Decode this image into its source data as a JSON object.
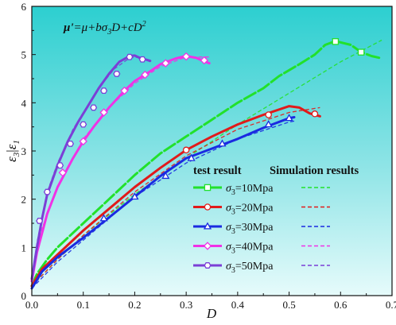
{
  "chart_data": {
    "type": "line",
    "formula": "μ'=μ+bσ3D+cD2",
    "formula_parts": {
      "lhs": "μ'",
      "rest": "=μ+bσ",
      "sub3": "3",
      "mid": "D+cD",
      "sup2": "2"
    },
    "xlabel": "D",
    "ylabel": "ε3|ε1",
    "ylabel_parts": {
      "a": "ε",
      "a_sub": "3",
      "bar": "|",
      "b": "ε",
      "b_sub": "1"
    },
    "xlim": [
      0.0,
      0.7
    ],
    "ylim": [
      0,
      6
    ],
    "x_ticks": [
      "0.0",
      "0.1",
      "0.2",
      "0.3",
      "0.4",
      "0.5",
      "0.6",
      "0.7"
    ],
    "y_ticks": [
      "0",
      "1",
      "2",
      "3",
      "4",
      "5",
      "6"
    ],
    "legend": {
      "header_test": "test result",
      "header_sim": "Simulation results",
      "placement": "lower-right"
    },
    "series": [
      {
        "name": "σ3=10Mpa",
        "sigma": "σ",
        "sub": "3",
        "rest": "=10Mpa",
        "color": "#22e12b",
        "marker": "square",
        "test_x": [
          0.0,
          0.01,
          0.03,
          0.05,
          0.1,
          0.15,
          0.2,
          0.25,
          0.3,
          0.35,
          0.4,
          0.45,
          0.48,
          0.52,
          0.55,
          0.57,
          0.59,
          0.62,
          0.64,
          0.66,
          0.68
        ],
        "test_y": [
          0.2,
          0.45,
          0.75,
          1.0,
          1.5,
          2.0,
          2.5,
          2.95,
          3.3,
          3.65,
          4.0,
          4.3,
          4.55,
          4.8,
          5.0,
          5.2,
          5.28,
          5.2,
          5.05,
          4.97,
          4.92
        ],
        "sim_x": [
          0.0,
          0.05,
          0.1,
          0.2,
          0.3,
          0.4,
          0.5,
          0.6,
          0.68
        ],
        "sim_y": [
          0.2,
          0.75,
          1.25,
          2.1,
          2.85,
          3.55,
          4.2,
          4.85,
          5.3
        ],
        "marker_points": [
          [
            0.59,
            5.27
          ],
          [
            0.64,
            5.05
          ]
        ]
      },
      {
        "name": "σ3=20Mpa",
        "sigma": "σ",
        "sub": "3",
        "rest": "=20Mpa",
        "color": "#e11a1a",
        "marker": "circle",
        "test_x": [
          0.0,
          0.02,
          0.05,
          0.1,
          0.15,
          0.2,
          0.25,
          0.3,
          0.35,
          0.4,
          0.45,
          0.5,
          0.52,
          0.54,
          0.56
        ],
        "test_y": [
          0.2,
          0.55,
          0.85,
          1.35,
          1.8,
          2.25,
          2.65,
          3.02,
          3.3,
          3.55,
          3.75,
          3.93,
          3.9,
          3.78,
          3.72
        ],
        "sim_x": [
          0.0,
          0.05,
          0.1,
          0.2,
          0.3,
          0.4,
          0.5,
          0.56
        ],
        "sim_y": [
          0.2,
          0.75,
          1.25,
          2.15,
          2.9,
          3.45,
          3.8,
          3.9
        ],
        "marker_points": [
          [
            0.3,
            3.02
          ],
          [
            0.46,
            3.75
          ],
          [
            0.55,
            3.77
          ]
        ]
      },
      {
        "name": "σ3=30Mpa",
        "sigma": "σ",
        "sub": "3",
        "rest": "=30Mpa",
        "color": "#1a2ae1",
        "marker": "triangle",
        "test_x": [
          0.0,
          0.02,
          0.05,
          0.1,
          0.15,
          0.2,
          0.25,
          0.3,
          0.35,
          0.4,
          0.45,
          0.5,
          0.51
        ],
        "test_y": [
          0.15,
          0.5,
          0.8,
          1.2,
          1.62,
          2.05,
          2.48,
          2.85,
          3.05,
          3.25,
          3.48,
          3.68,
          3.7
        ],
        "sim_x": [
          0.0,
          0.05,
          0.1,
          0.2,
          0.3,
          0.4,
          0.5,
          0.51
        ],
        "sim_y": [
          0.15,
          0.7,
          1.15,
          2.05,
          2.75,
          3.25,
          3.6,
          3.62
        ],
        "marker_points": [
          [
            0.14,
            1.6
          ],
          [
            0.2,
            2.05
          ],
          [
            0.26,
            2.48
          ],
          [
            0.31,
            2.85
          ],
          [
            0.37,
            3.15
          ],
          [
            0.46,
            3.55
          ],
          [
            0.5,
            3.68
          ]
        ]
      },
      {
        "name": "σ3=40Mpa",
        "sigma": "σ",
        "sub": "3",
        "rest": "=40Mpa",
        "color": "#f032e6",
        "marker": "diamond",
        "test_x": [
          0.0,
          0.01,
          0.03,
          0.05,
          0.08,
          0.1,
          0.12,
          0.15,
          0.18,
          0.2,
          0.23,
          0.25,
          0.28,
          0.3,
          0.32,
          0.33,
          0.345
        ],
        "test_y": [
          0.3,
          0.9,
          1.7,
          2.25,
          2.85,
          3.2,
          3.5,
          3.9,
          4.25,
          4.45,
          4.65,
          4.8,
          4.92,
          4.97,
          4.93,
          4.88,
          4.82
        ],
        "sim_x": [
          0.0,
          0.02,
          0.05,
          0.1,
          0.15,
          0.2,
          0.25,
          0.3,
          0.345
        ],
        "sim_y": [
          0.3,
          1.4,
          2.25,
          3.25,
          3.9,
          4.4,
          4.75,
          4.95,
          4.95
        ],
        "marker_points": [
          [
            0.06,
            2.55
          ],
          [
            0.1,
            3.2
          ],
          [
            0.14,
            3.8
          ],
          [
            0.18,
            4.25
          ],
          [
            0.22,
            4.58
          ],
          [
            0.26,
            4.82
          ],
          [
            0.3,
            4.96
          ],
          [
            0.335,
            4.88
          ]
        ]
      },
      {
        "name": "σ3=50Mpa",
        "sigma": "σ",
        "sub": "3",
        "rest": "=50Mpa",
        "color": "#7b3fd6",
        "marker": "hexagon",
        "test_x": [
          0.0,
          0.01,
          0.02,
          0.03,
          0.05,
          0.07,
          0.09,
          0.11,
          0.13,
          0.15,
          0.17,
          0.19,
          0.2,
          0.21,
          0.22,
          0.23
        ],
        "test_y": [
          0.35,
          1.0,
          1.6,
          2.1,
          2.7,
          3.2,
          3.6,
          3.95,
          4.3,
          4.6,
          4.85,
          4.97,
          4.98,
          4.93,
          4.9,
          4.87
        ],
        "sim_x": [
          0.0,
          0.01,
          0.03,
          0.05,
          0.08,
          0.1,
          0.13,
          0.16,
          0.19,
          0.21,
          0.23
        ],
        "sim_y": [
          0.35,
          1.1,
          2.15,
          2.75,
          3.45,
          3.8,
          4.3,
          4.7,
          4.93,
          4.95,
          4.85
        ],
        "marker_points": [
          [
            0.015,
            1.55
          ],
          [
            0.03,
            2.15
          ],
          [
            0.055,
            2.7
          ],
          [
            0.075,
            3.15
          ],
          [
            0.1,
            3.55
          ],
          [
            0.12,
            3.9
          ],
          [
            0.14,
            4.25
          ],
          [
            0.165,
            4.6
          ],
          [
            0.19,
            4.95
          ],
          [
            0.215,
            4.9
          ]
        ]
      }
    ]
  }
}
